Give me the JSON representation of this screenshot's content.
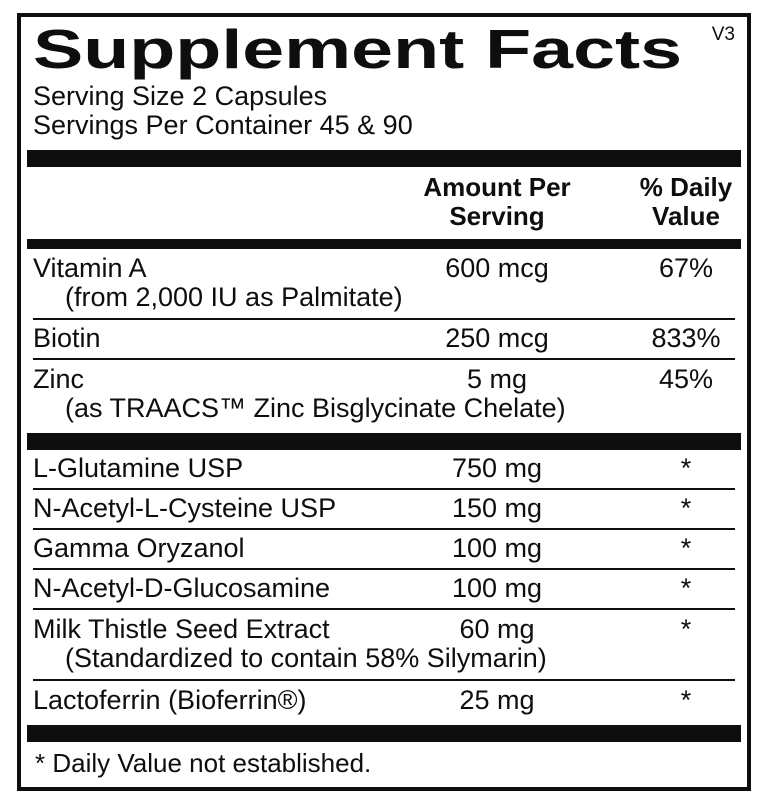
{
  "colors": {
    "ink": "#0e0e0e",
    "background": "#ffffff"
  },
  "header": {
    "title": "Supplement Facts",
    "version": "V3",
    "serving_size": "Serving Size 2 Capsules",
    "servings_per_container": "Servings Per Container 45 & 90"
  },
  "columns": {
    "amount_header": "Amount Per Serving",
    "daily_value_header": "% Daily Value"
  },
  "rows": [
    {
      "name": "Vitamin A",
      "detail": "(from 2,000 IU as Palmitate)",
      "amount": "600 mcg",
      "daily_value": "67%"
    },
    {
      "name": "Biotin",
      "amount": "250 mcg",
      "daily_value": "833%"
    },
    {
      "name": "Zinc",
      "detail": "(as TRAACS™ Zinc Bisglycinate Chelate)",
      "amount": "5 mg",
      "daily_value": "45%"
    },
    {
      "name": "L-Glutamine USP",
      "amount": "750 mg",
      "daily_value": "*"
    },
    {
      "name": "N-Acetyl-L-Cysteine USP",
      "amount": "150 mg",
      "daily_value": "*"
    },
    {
      "name": "Gamma Oryzanol",
      "amount": "100 mg",
      "daily_value": "*"
    },
    {
      "name": "N-Acetyl-D-Glucosamine",
      "amount": "100 mg",
      "daily_value": "*"
    },
    {
      "name": "Milk Thistle Seed Extract",
      "detail": "(Standardized to contain 58% Silymarin)",
      "amount": "60 mg",
      "daily_value": "*"
    },
    {
      "name": "Lactoferrin (Bioferrin®)",
      "amount": "25 mg",
      "daily_value": "*"
    }
  ],
  "footnote": "* Daily Value not established."
}
